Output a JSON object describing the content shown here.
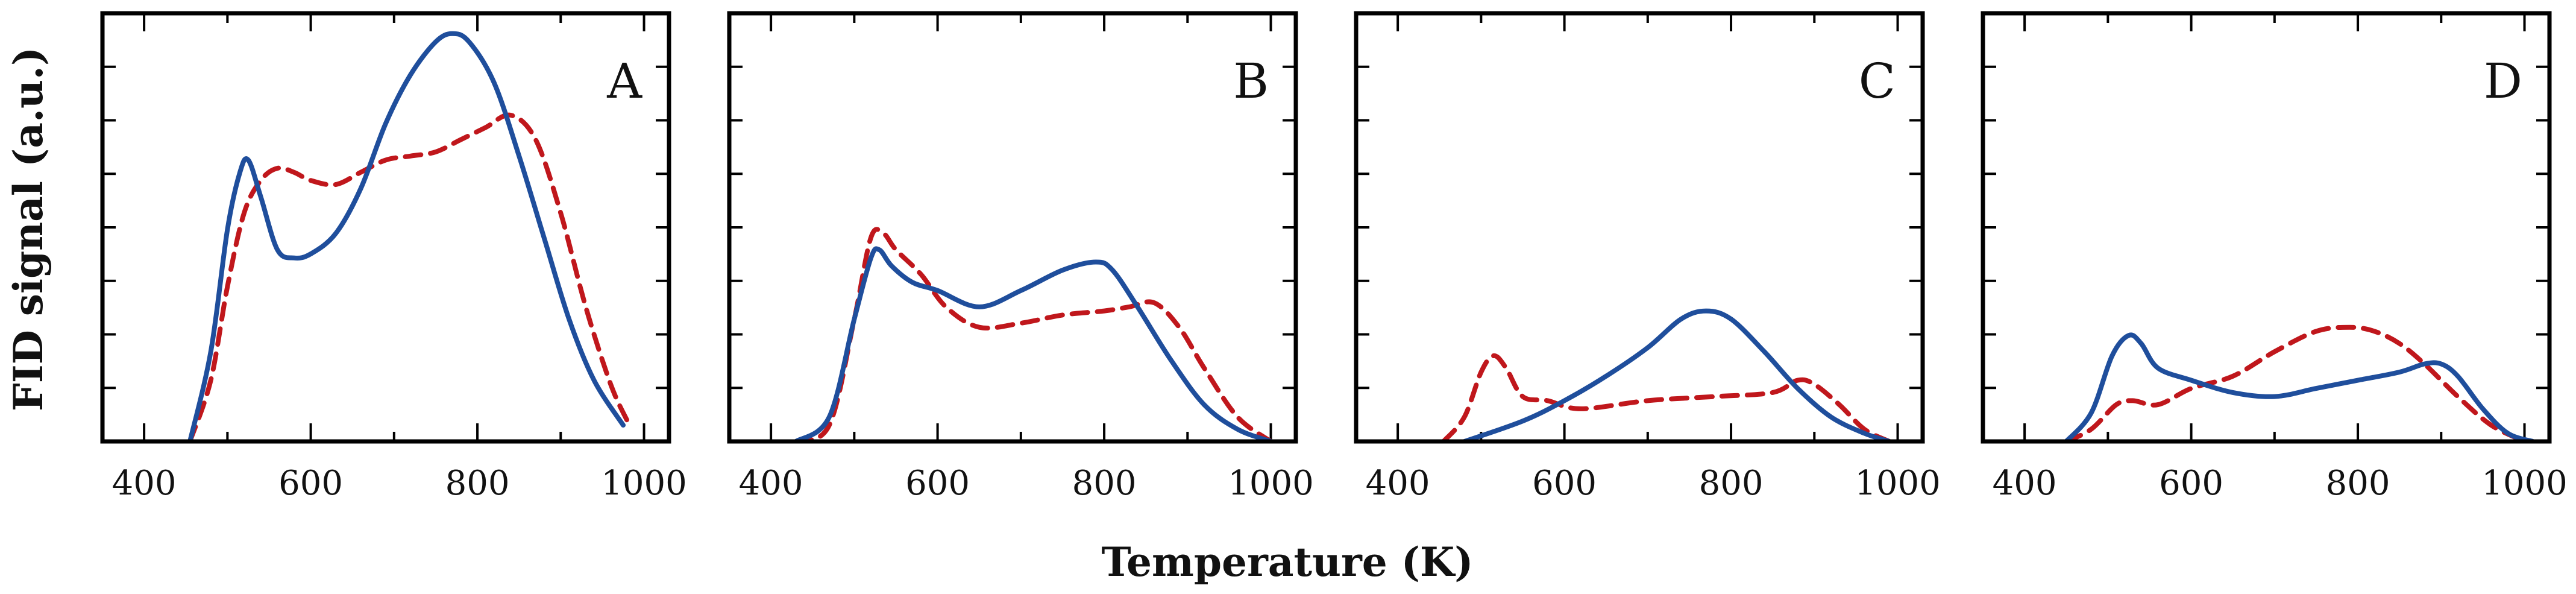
{
  "chart_data": {
    "type": "line",
    "xlabel": "Temperature (K)",
    "ylabel": "FID signal (a.u.)",
    "xlim": [
      350,
      1030
    ],
    "ylim": [
      0,
      1.05
    ],
    "xticks": [
      400,
      600,
      800,
      1000
    ],
    "ytick_count": 8,
    "series_styles": [
      {
        "name": "solid",
        "color": "#1f4e9c",
        "dash": "solid"
      },
      {
        "name": "dashed",
        "color": "#c0171c",
        "dash": "dashed"
      }
    ],
    "panels": [
      {
        "label": "A",
        "series": [
          {
            "name": "solid",
            "x": [
              455,
              480,
              500,
              515,
              525,
              540,
              560,
              580,
              600,
              630,
              660,
              690,
              720,
              750,
              770,
              790,
              820,
              850,
              880,
              910,
              940,
              975
            ],
            "y": [
              0,
              0.22,
              0.52,
              0.66,
              0.69,
              0.6,
              0.47,
              0.45,
              0.46,
              0.51,
              0.62,
              0.78,
              0.9,
              0.98,
              1.0,
              0.98,
              0.88,
              0.7,
              0.5,
              0.3,
              0.15,
              0.04
            ]
          },
          {
            "name": "dashed",
            "x": [
              455,
              480,
              500,
              520,
              540,
              560,
              580,
              600,
              630,
              660,
              690,
              720,
              750,
              780,
              810,
              840,
              870,
              900,
              930,
              960,
              980
            ],
            "y": [
              0,
              0.15,
              0.38,
              0.56,
              0.64,
              0.67,
              0.66,
              0.64,
              0.63,
              0.66,
              0.69,
              0.7,
              0.71,
              0.74,
              0.77,
              0.8,
              0.74,
              0.56,
              0.33,
              0.14,
              0.05
            ]
          }
        ]
      },
      {
        "label": "B",
        "series": [
          {
            "name": "solid",
            "x": [
              430,
              470,
              500,
              520,
              530,
              545,
              570,
              600,
              650,
              700,
              750,
              790,
              810,
              840,
              880,
              920,
              960,
              1000
            ],
            "y": [
              0,
              0.06,
              0.3,
              0.45,
              0.47,
              0.43,
              0.39,
              0.37,
              0.33,
              0.37,
              0.42,
              0.44,
              0.42,
              0.33,
              0.2,
              0.09,
              0.03,
              0
            ]
          },
          {
            "name": "dashed",
            "x": [
              430,
              470,
              500,
              520,
              535,
              550,
              580,
              610,
              650,
              700,
              750,
              800,
              830,
              860,
              890,
              920,
              960,
              1000
            ],
            "y": [
              0,
              0.04,
              0.3,
              0.5,
              0.51,
              0.47,
              0.41,
              0.33,
              0.28,
              0.29,
              0.31,
              0.32,
              0.33,
              0.34,
              0.28,
              0.18,
              0.06,
              0
            ]
          }
        ]
      },
      {
        "label": "C",
        "series": [
          {
            "name": "solid",
            "x": [
              480,
              550,
              600,
              650,
              700,
              740,
              770,
              800,
              840,
              880,
              920,
              960,
              990
            ],
            "y": [
              0,
              0.05,
              0.1,
              0.16,
              0.23,
              0.3,
              0.32,
              0.3,
              0.22,
              0.13,
              0.06,
              0.02,
              0
            ]
          },
          {
            "name": "dashed",
            "x": [
              455,
              480,
              500,
              515,
              530,
              550,
              580,
              620,
              700,
              780,
              850,
              880,
              900,
              930,
              960,
              990
            ],
            "y": [
              0,
              0.06,
              0.17,
              0.21,
              0.18,
              0.11,
              0.1,
              0.08,
              0.1,
              0.11,
              0.12,
              0.15,
              0.14,
              0.09,
              0.03,
              0
            ]
          }
        ]
      },
      {
        "label": "D",
        "series": [
          {
            "name": "solid",
            "x": [
              450,
              480,
              505,
              525,
              540,
              560,
              600,
              650,
              700,
              750,
              800,
              850,
              880,
              900,
              920,
              950,
              980,
              1010
            ],
            "y": [
              0,
              0.07,
              0.21,
              0.26,
              0.24,
              0.18,
              0.15,
              0.12,
              0.11,
              0.13,
              0.15,
              0.17,
              0.19,
              0.19,
              0.16,
              0.08,
              0.02,
              0
            ]
          },
          {
            "name": "dashed",
            "x": [
              450,
              480,
              510,
              530,
              560,
              600,
              650,
              700,
              750,
              790,
              820,
              850,
              880,
              920,
              960,
              1000
            ],
            "y": [
              0,
              0.03,
              0.09,
              0.1,
              0.09,
              0.13,
              0.16,
              0.22,
              0.27,
              0.28,
              0.27,
              0.24,
              0.19,
              0.11,
              0.04,
              0
            ]
          }
        ]
      }
    ]
  }
}
